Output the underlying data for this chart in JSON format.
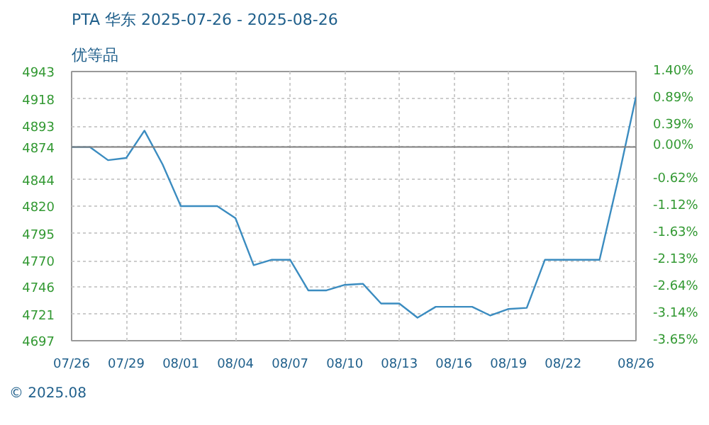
{
  "chart_data": {
    "type": "line",
    "title": "PTA 华东 2025-07-26 - 2025-08-26",
    "subtitle": "优等品",
    "x": [
      "2025-07-26",
      "2025-07-27",
      "2025-07-28",
      "2025-07-29",
      "2025-07-30",
      "2025-07-31",
      "2025-08-01",
      "2025-08-02",
      "2025-08-03",
      "2025-08-04",
      "2025-08-05",
      "2025-08-06",
      "2025-08-07",
      "2025-08-08",
      "2025-08-09",
      "2025-08-10",
      "2025-08-11",
      "2025-08-12",
      "2025-08-13",
      "2025-08-14",
      "2025-08-15",
      "2025-08-16",
      "2025-08-17",
      "2025-08-18",
      "2025-08-19",
      "2025-08-20",
      "2025-08-21",
      "2025-08-22",
      "2025-08-23",
      "2025-08-24",
      "2025-08-25",
      "2025-08-26"
    ],
    "series": [
      {
        "color": "#3b8cc0",
        "values": [
          4874,
          4874,
          4862,
          4864,
          4889,
          4858,
          4820,
          4820,
          4820,
          4809,
          4766,
          4771,
          4771,
          4743,
          4743,
          4748,
          4749,
          4731,
          4731,
          4718,
          4728,
          4728,
          4728,
          4720,
          4726,
          4727,
          4771,
          4771,
          4771,
          4771,
          4843,
          4920
        ]
      }
    ],
    "xlim": [
      "2025-07-26",
      "2025-08-26"
    ],
    "xticks": [
      {
        "value": "2025-07-26",
        "label": "07/26"
      },
      {
        "value": "2025-07-29",
        "label": "07/29"
      },
      {
        "value": "2025-08-01",
        "label": "08/01"
      },
      {
        "value": "2025-08-04",
        "label": "08/04"
      },
      {
        "value": "2025-08-07",
        "label": "08/07"
      },
      {
        "value": "2025-08-10",
        "label": "08/10"
      },
      {
        "value": "2025-08-13",
        "label": "08/13"
      },
      {
        "value": "2025-08-16",
        "label": "08/16"
      },
      {
        "value": "2025-08-19",
        "label": "08/19"
      },
      {
        "value": "2025-08-22",
        "label": "08/22"
      },
      {
        "value": "2025-08-26",
        "label": "08/26"
      }
    ],
    "ylim": [
      4697,
      4943
    ],
    "yticks": [
      4697,
      4721,
      4746,
      4770,
      4795,
      4820,
      4844,
      4874,
      4893,
      4918,
      4943
    ],
    "y2lim": [
      -3.65,
      1.4
    ],
    "y2ticks": [
      {
        "value": 1.4,
        "label": "1.40%"
      },
      {
        "value": 0.89,
        "label": "0.89%"
      },
      {
        "value": 0.39,
        "label": "0.39%"
      },
      {
        "value": 0,
        "label": "0.00%"
      },
      {
        "value": -0.62,
        "label": "-0.62%"
      },
      {
        "value": -1.12,
        "label": "-1.12%"
      },
      {
        "value": -1.63,
        "label": "-1.63%"
      },
      {
        "value": -2.13,
        "label": "-2.13%"
      },
      {
        "value": -2.64,
        "label": "-2.64%"
      },
      {
        "value": -3.14,
        "label": "-3.14%"
      },
      {
        "value": -3.65,
        "label": "-3.65%"
      }
    ],
    "ref_lines": [
      {
        "axis": "y",
        "value": 4874,
        "color": "#808080"
      }
    ],
    "grid": true,
    "line_style": "solid",
    "marker": "none",
    "annotations": [
      "© 2025.08"
    ]
  }
}
